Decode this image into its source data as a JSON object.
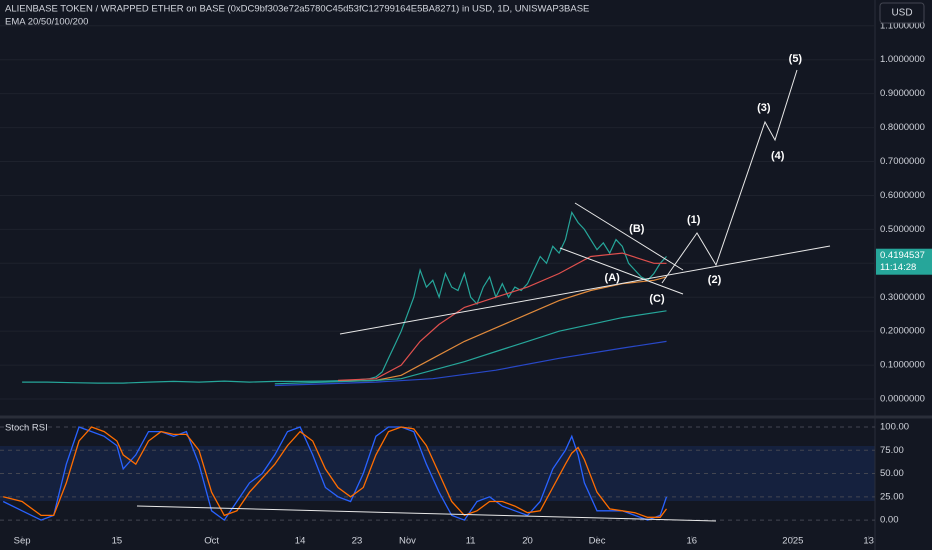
{
  "header": {
    "currency_button": "USD"
  },
  "chart_data": [
    {
      "type": "line",
      "title": "ALIENBASE TOKEN / WRAPPED ETHER on BASE (0xDC9bf303e72a5780C45d53fC12799164E5BA8271) in USD, 1D, UNISWAP3BASE",
      "subtitle": "EMA 20/50/100/200",
      "xlim": [
        -3.5,
        135
      ],
      "ylim": [
        -0.05,
        1.176
      ],
      "yticks": [
        {
          "value": 0,
          "label": "0.0000000"
        },
        {
          "value": 0.1,
          "label": "0.1000000"
        },
        {
          "value": 0.2,
          "label": "0.2000000"
        },
        {
          "value": 0.3,
          "label": "0.3000000"
        },
        {
          "value": 0.4,
          "label": "0.4000000"
        },
        {
          "value": 0.5,
          "label": "0.5000000"
        },
        {
          "value": 0.6,
          "label": "0.6000000"
        },
        {
          "value": 0.7,
          "label": "0.7000000"
        },
        {
          "value": 0.8,
          "label": "0.8000000"
        },
        {
          "value": 0.9,
          "label": "0.9000000"
        },
        {
          "value": 1,
          "label": "1.0000000"
        },
        {
          "value": 1.1,
          "label": "1.1000000"
        }
      ],
      "last_price": {
        "value": 0.4194537,
        "label": "0.4194537"
      },
      "countdown": "11:14:28",
      "series": [
        {
          "color": "#26a69a",
          "x": [
            0,
            4,
            8,
            12,
            16,
            20,
            24,
            28,
            32,
            36,
            40,
            44,
            48,
            52,
            55,
            56,
            57,
            58,
            59,
            60,
            61,
            62,
            63,
            64,
            65,
            66,
            67,
            68,
            69,
            70,
            71,
            72,
            73,
            74,
            75,
            76,
            77,
            78,
            79,
            80,
            81,
            82,
            83,
            84,
            85,
            86,
            87,
            88,
            89,
            90,
            91,
            92,
            93,
            94,
            95,
            96,
            97,
            98,
            99,
            100,
            101,
            102
          ],
          "values": [
            0.05,
            0.05,
            0.048,
            0.047,
            0.047,
            0.05,
            0.052,
            0.05,
            0.053,
            0.05,
            0.052,
            0.052,
            0.053,
            0.055,
            0.06,
            0.065,
            0.08,
            0.12,
            0.16,
            0.2,
            0.25,
            0.3,
            0.38,
            0.33,
            0.35,
            0.3,
            0.37,
            0.33,
            0.32,
            0.37,
            0.3,
            0.28,
            0.33,
            0.36,
            0.3,
            0.34,
            0.3,
            0.33,
            0.32,
            0.34,
            0.38,
            0.42,
            0.4,
            0.45,
            0.43,
            0.47,
            0.55,
            0.52,
            0.5,
            0.47,
            0.44,
            0.46,
            0.43,
            0.47,
            0.45,
            0.4,
            0.38,
            0.36,
            0.35,
            0.37,
            0.4,
            0.42
          ]
        },
        {
          "color": "#e0504e",
          "x": [
            50,
            56,
            60,
            63,
            66,
            70,
            75,
            80,
            85,
            90,
            95,
            100,
            102
          ],
          "values": [
            0.055,
            0.06,
            0.1,
            0.17,
            0.22,
            0.27,
            0.3,
            0.33,
            0.37,
            0.42,
            0.43,
            0.4,
            0.4
          ]
        },
        {
          "color": "#e08a3c",
          "x": [
            50,
            56,
            60,
            65,
            70,
            75,
            80,
            85,
            90,
            95,
            100,
            102
          ],
          "values": [
            0.052,
            0.055,
            0.07,
            0.12,
            0.17,
            0.21,
            0.25,
            0.29,
            0.32,
            0.34,
            0.35,
            0.36
          ]
        },
        {
          "color": "#26a69a",
          "x": [
            40,
            56,
            60,
            65,
            70,
            75,
            80,
            85,
            90,
            95,
            102
          ],
          "values": [
            0.045,
            0.055,
            0.06,
            0.085,
            0.11,
            0.14,
            0.17,
            0.2,
            0.22,
            0.24,
            0.26
          ]
        },
        {
          "color": "#2848c8",
          "x": [
            40,
            56,
            65,
            75,
            85,
            95,
            102
          ],
          "values": [
            0.04,
            0.05,
            0.06,
            0.085,
            0.12,
            0.15,
            0.17
          ]
        }
      ],
      "annotations": [
        {
          "text": "(1)",
          "x": 106.3,
          "y": 0.528
        },
        {
          "text": "(2)",
          "x": 109.6,
          "y": 0.351
        },
        {
          "text": "(3)",
          "x": 117.4,
          "y": 0.858
        },
        {
          "text": "(4)",
          "x": 119.6,
          "y": 0.716
        },
        {
          "text": "(5)",
          "x": 122.4,
          "y": 1.002
        },
        {
          "text": "(A)",
          "x": 93.4,
          "y": 0.357
        },
        {
          "text": "(B)",
          "x": 97.3,
          "y": 0.501
        },
        {
          "text": "(C)",
          "x": 100.5,
          "y": 0.295
        }
      ]
    },
    {
      "type": "line",
      "title": "Stoch RSI",
      "xlim": [
        -3.5,
        135
      ],
      "ylim": [
        -16,
        107.5
      ],
      "yticks": [
        {
          "value": 100,
          "label": "100.00"
        },
        {
          "value": 75,
          "label": "75.00"
        },
        {
          "value": 50,
          "label": "50.00"
        },
        {
          "value": 25,
          "label": "25.00"
        },
        {
          "value": 0,
          "label": "0.00"
        }
      ],
      "xticks": [
        {
          "value": 0,
          "label": "Sep"
        },
        15,
        {
          "value": 30,
          "label": "Oct"
        },
        {
          "value": 44,
          "label": "14"
        },
        {
          "value": 53,
          "label": "23"
        },
        {
          "value": 61,
          "label": "Nov"
        },
        {
          "value": 71,
          "label": "11"
        },
        {
          "value": 80,
          "label": "20"
        },
        {
          "value": 91,
          "label": "Dec"
        },
        {
          "value": 106,
          "label": "16"
        },
        {
          "value": 122,
          "label": "2025"
        },
        {
          "value": 134,
          "label": "13"
        }
      ],
      "series": [
        {
          "color": "#2962ff",
          "x": [
            -3,
            0,
            3,
            5,
            7,
            9,
            11,
            13,
            15,
            16,
            18,
            20,
            22,
            24,
            26,
            28,
            30,
            32,
            34,
            36,
            38,
            40,
            42,
            44,
            46,
            48,
            50,
            52,
            54,
            56,
            58,
            60,
            62,
            64,
            66,
            68,
            70,
            72,
            74,
            76,
            78,
            80,
            82,
            84,
            86,
            87,
            88,
            89,
            91,
            93,
            95,
            97,
            99,
            101,
            102
          ],
          "values": [
            20,
            10,
            0,
            5,
            60,
            100,
            95,
            90,
            80,
            55,
            70,
            95,
            95,
            90,
            95,
            60,
            10,
            0,
            20,
            40,
            50,
            70,
            95,
            100,
            70,
            35,
            25,
            20,
            50,
            90,
            100,
            100,
            95,
            60,
            30,
            5,
            0,
            20,
            25,
            15,
            10,
            5,
            20,
            55,
            75,
            90,
            70,
            40,
            10,
            10,
            10,
            5,
            0,
            5,
            25
          ]
        },
        {
          "color": "#ff6d00",
          "x": [
            -3,
            0,
            3,
            5,
            7,
            9,
            11,
            13,
            15,
            16,
            18,
            20,
            22,
            24,
            26,
            28,
            30,
            32,
            34,
            36,
            38,
            40,
            42,
            44,
            46,
            48,
            50,
            52,
            54,
            56,
            58,
            60,
            62,
            64,
            66,
            68,
            70,
            72,
            74,
            76,
            78,
            80,
            82,
            84,
            86,
            87,
            88,
            89,
            91,
            93,
            95,
            97,
            99,
            101,
            102
          ],
          "values": [
            25,
            20,
            5,
            5,
            40,
            85,
            100,
            95,
            85,
            70,
            60,
            85,
            95,
            92,
            92,
            75,
            30,
            5,
            10,
            30,
            45,
            60,
            80,
            95,
            85,
            55,
            35,
            25,
            35,
            70,
            95,
            100,
            98,
            80,
            50,
            20,
            5,
            10,
            20,
            20,
            15,
            8,
            10,
            35,
            60,
            72,
            78,
            65,
            30,
            12,
            10,
            8,
            3,
            3,
            12
          ]
        }
      ]
    }
  ]
}
